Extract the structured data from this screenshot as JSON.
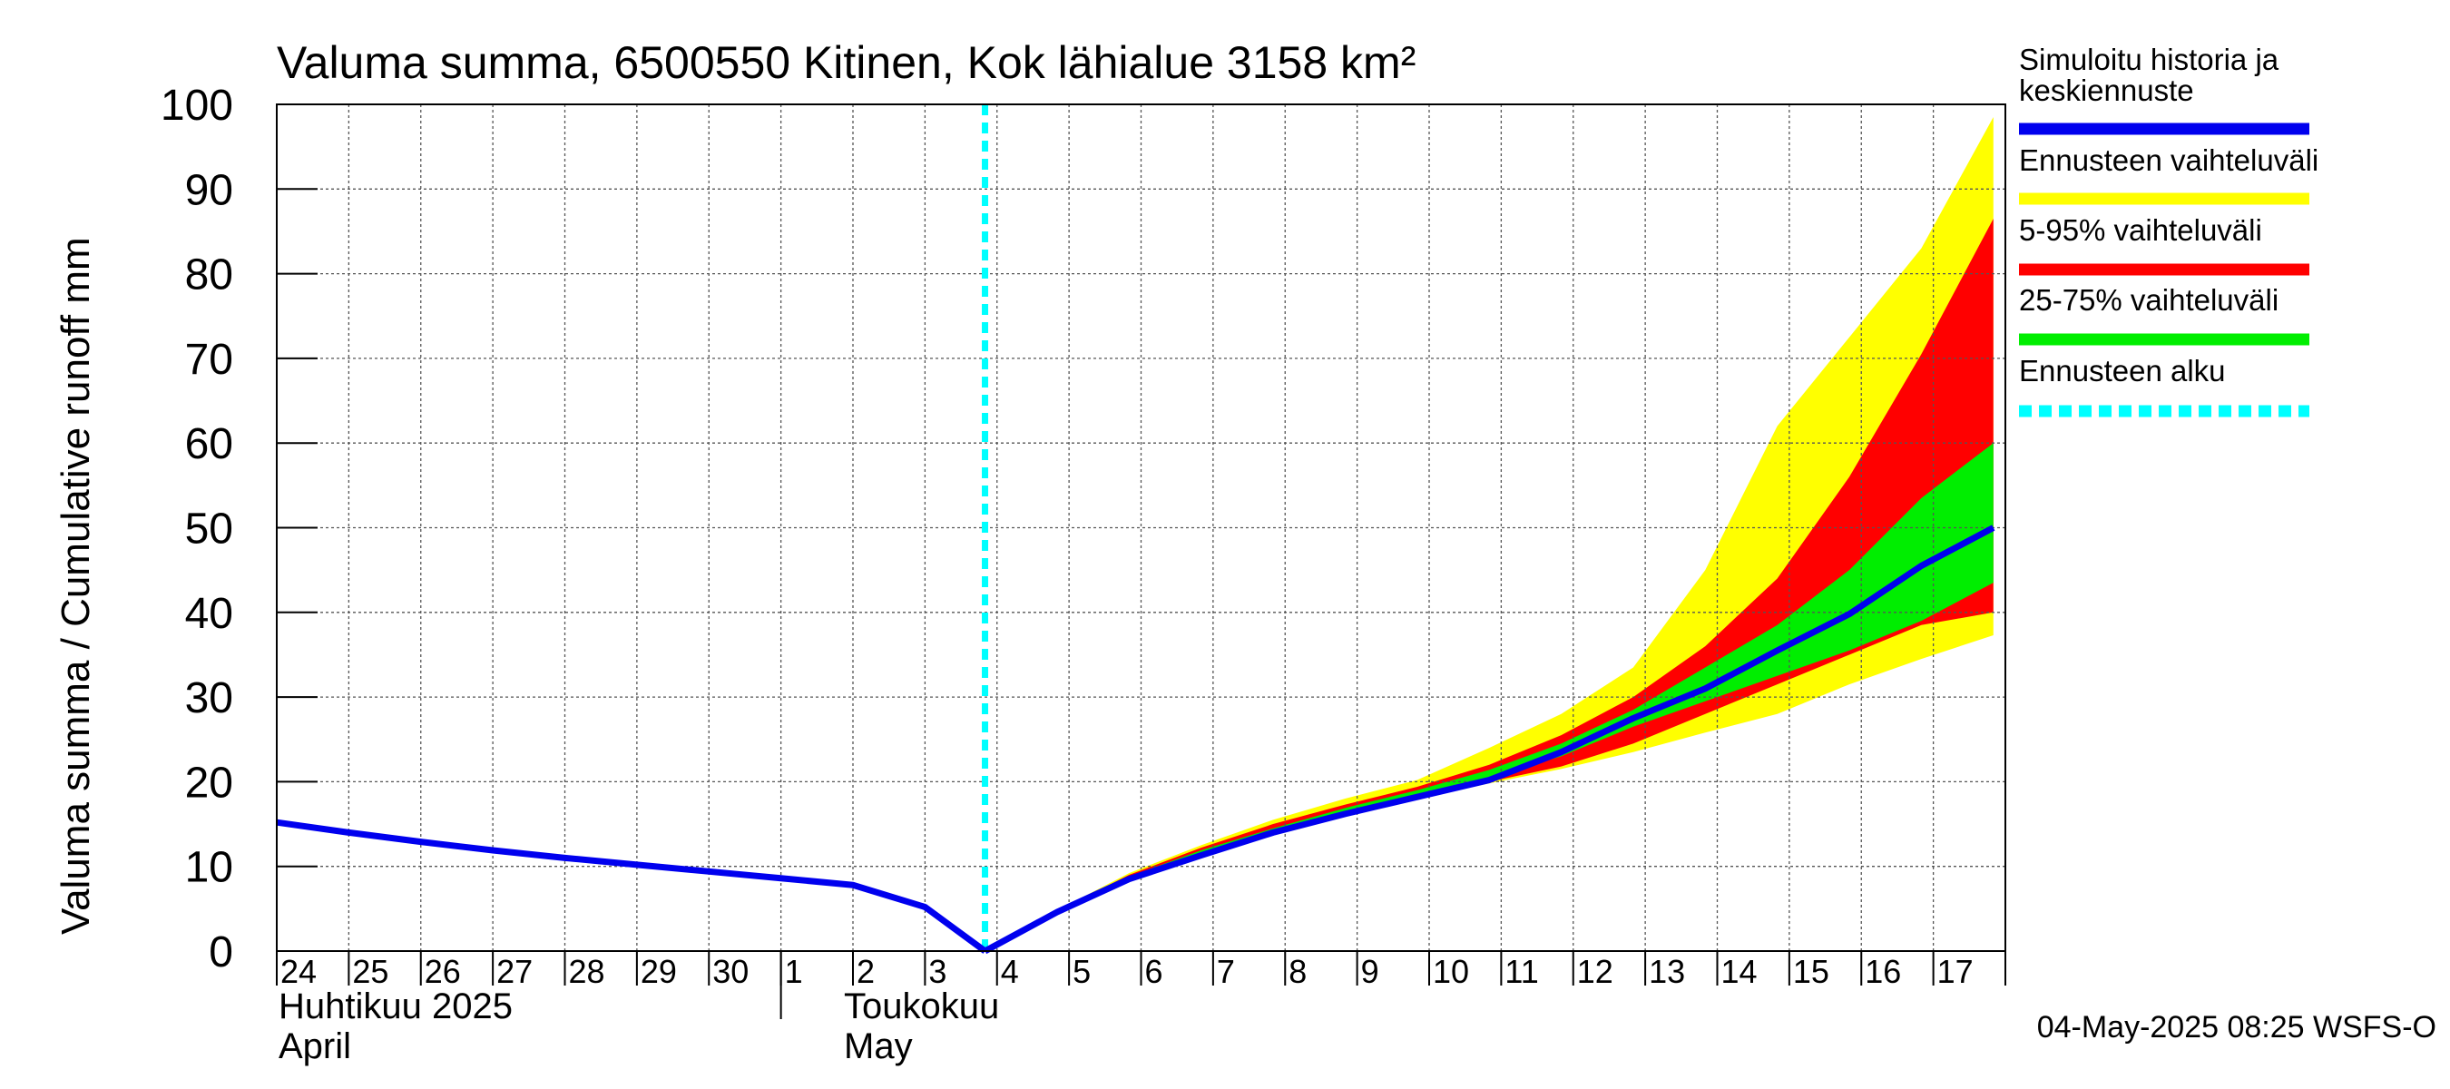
{
  "chart_data": {
    "type": "area",
    "title": "Valuma summa, 6500550 Kitinen, Kok lähialue 3158 km²",
    "ylabel": "Valuma summa / Cumulative runoff    mm",
    "ylim": [
      0,
      100
    ],
    "yticks": [
      0,
      10,
      20,
      30,
      40,
      50,
      60,
      70,
      80,
      90,
      100
    ],
    "xlim": [
      "2025-04-24",
      "2025-05-18"
    ],
    "x_tick_labels": [
      "24",
      "25",
      "26",
      "27",
      "28",
      "29",
      "30",
      "1",
      "2",
      "3",
      "4",
      "5",
      "6",
      "7",
      "8",
      "9",
      "10",
      "11",
      "12",
      "13",
      "14",
      "15",
      "16",
      "17"
    ],
    "month_labels": [
      {
        "fi": "Huhtikuu  2025",
        "en": "April"
      },
      {
        "fi": "Toukokuu",
        "en": "May"
      }
    ],
    "grid": true,
    "legend_position": "right",
    "forecast_start": "2025-05-03T20:00",
    "history": {
      "x": [
        "2025-04-24",
        "2025-04-25",
        "2025-04-26",
        "2025-04-27",
        "2025-04-28",
        "2025-04-29",
        "2025-04-30",
        "2025-05-01",
        "2025-05-02",
        "2025-05-03",
        "2025-05-03T20:00"
      ],
      "y": [
        15.2,
        14.0,
        12.9,
        11.9,
        11.0,
        10.2,
        9.4,
        8.6,
        7.8,
        5.2,
        0
      ]
    },
    "forecast_x": [
      "2025-05-03T20:00",
      "2025-05-04T20:00",
      "2025-05-05T20:00",
      "2025-05-06T20:00",
      "2025-05-07T20:00",
      "2025-05-08T20:00",
      "2025-05-09T20:00",
      "2025-05-10T20:00",
      "2025-05-11T20:00",
      "2025-05-12T20:00",
      "2025-05-13T20:00",
      "2025-05-14T20:00",
      "2025-05-15T20:00",
      "2025-05-16T20:00",
      "2025-05-17T20:00"
    ],
    "series": [
      {
        "name": "Ennusteen vaihteluväli",
        "color": "#ffff00",
        "lower": [
          0,
          4.5,
          8.3,
          11.2,
          13.8,
          16.0,
          18.0,
          19.8,
          21.5,
          23.5,
          25.8,
          28.0,
          31.5,
          34.5,
          37.3
        ],
        "upper": [
          0,
          4.8,
          9.2,
          12.5,
          15.5,
          18.0,
          20.2,
          24.0,
          28.0,
          33.5,
          45.0,
          62.0,
          72.5,
          83.0,
          98.5
        ]
      },
      {
        "name": "5-95% vaihteluväli",
        "color": "#ff0000",
        "lower": [
          0,
          4.6,
          8.5,
          11.5,
          14.0,
          16.2,
          18.3,
          20.0,
          21.8,
          24.5,
          28.0,
          31.5,
          35.0,
          38.5,
          40.0
        ],
        "upper": [
          0,
          4.7,
          9.0,
          12.2,
          15.0,
          17.3,
          19.4,
          22.0,
          25.5,
          30.0,
          36.0,
          44.0,
          56.0,
          70.5,
          86.5
        ]
      },
      {
        "name": "25-75% vaihteluväli",
        "color": "#00ee00",
        "lower": [
          0,
          4.6,
          8.6,
          11.6,
          14.1,
          16.4,
          18.5,
          20.5,
          23.0,
          26.5,
          29.5,
          32.5,
          35.5,
          39.0,
          43.5
        ],
        "upper": [
          0,
          4.7,
          8.8,
          11.9,
          14.5,
          16.9,
          19.0,
          21.4,
          24.5,
          28.5,
          33.5,
          38.5,
          45.0,
          53.5,
          60.0
        ]
      },
      {
        "name": "Simuloitu historia ja keskiennuste",
        "color": "#0000ee",
        "values": [
          0,
          4.6,
          8.5,
          11.3,
          14.0,
          16.2,
          18.2,
          20.2,
          23.5,
          27.5,
          31.0,
          35.5,
          39.8,
          45.5,
          50.0
        ]
      }
    ],
    "forecast_start_legend": "Ennusteen alku",
    "forecast_start_color": "#00ffff",
    "footer": "04-May-2025 08:25 WSFS-O"
  }
}
